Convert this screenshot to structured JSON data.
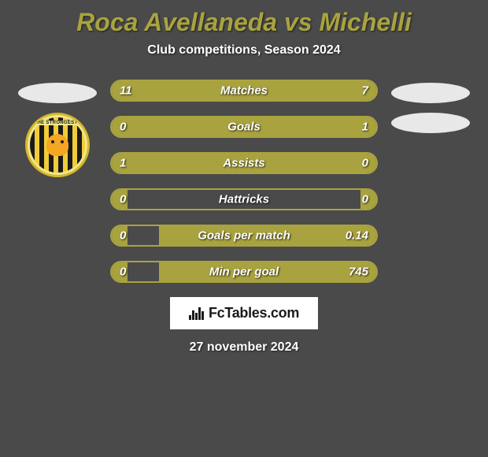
{
  "title": "Roca Avellaneda vs Michelli",
  "subtitle": "Club competitions, Season 2024",
  "left_badge": {
    "text": "HE STRONGEST",
    "outer_bg": "#f0e68c",
    "stripe_dark": "#1a1a1a",
    "stripe_light": "#f0cc3a",
    "tiger_color": "#f5a623"
  },
  "colors": {
    "background": "#4a4a4a",
    "accent": "#a9a33f",
    "text": "#ffffff",
    "placeholder": "#e8e8e8"
  },
  "stats": [
    {
      "label": "Matches",
      "left_val": "11",
      "right_val": "7",
      "left_pct": 61,
      "right_pct": 39
    },
    {
      "label": "Goals",
      "left_val": "0",
      "right_val": "1",
      "left_pct": 18,
      "right_pct": 82
    },
    {
      "label": "Assists",
      "left_val": "1",
      "right_val": "0",
      "left_pct": 82,
      "right_pct": 18
    },
    {
      "label": "Hattricks",
      "left_val": "0",
      "right_val": "0",
      "left_pct": 6,
      "right_pct": 6
    },
    {
      "label": "Goals per match",
      "left_val": "0",
      "right_val": "0.14",
      "left_pct": 6,
      "right_pct": 82
    },
    {
      "label": "Min per goal",
      "left_val": "0",
      "right_val": "745",
      "left_pct": 6,
      "right_pct": 82
    }
  ],
  "brand": "FcTables.com",
  "date": "27 november 2024",
  "typography": {
    "title_fontsize": 32,
    "subtitle_fontsize": 16,
    "stat_label_fontsize": 15,
    "brand_fontsize": 18,
    "date_fontsize": 16
  },
  "bar_style": {
    "height": 28,
    "border_radius": 14,
    "border_width": 2,
    "gap": 18
  }
}
